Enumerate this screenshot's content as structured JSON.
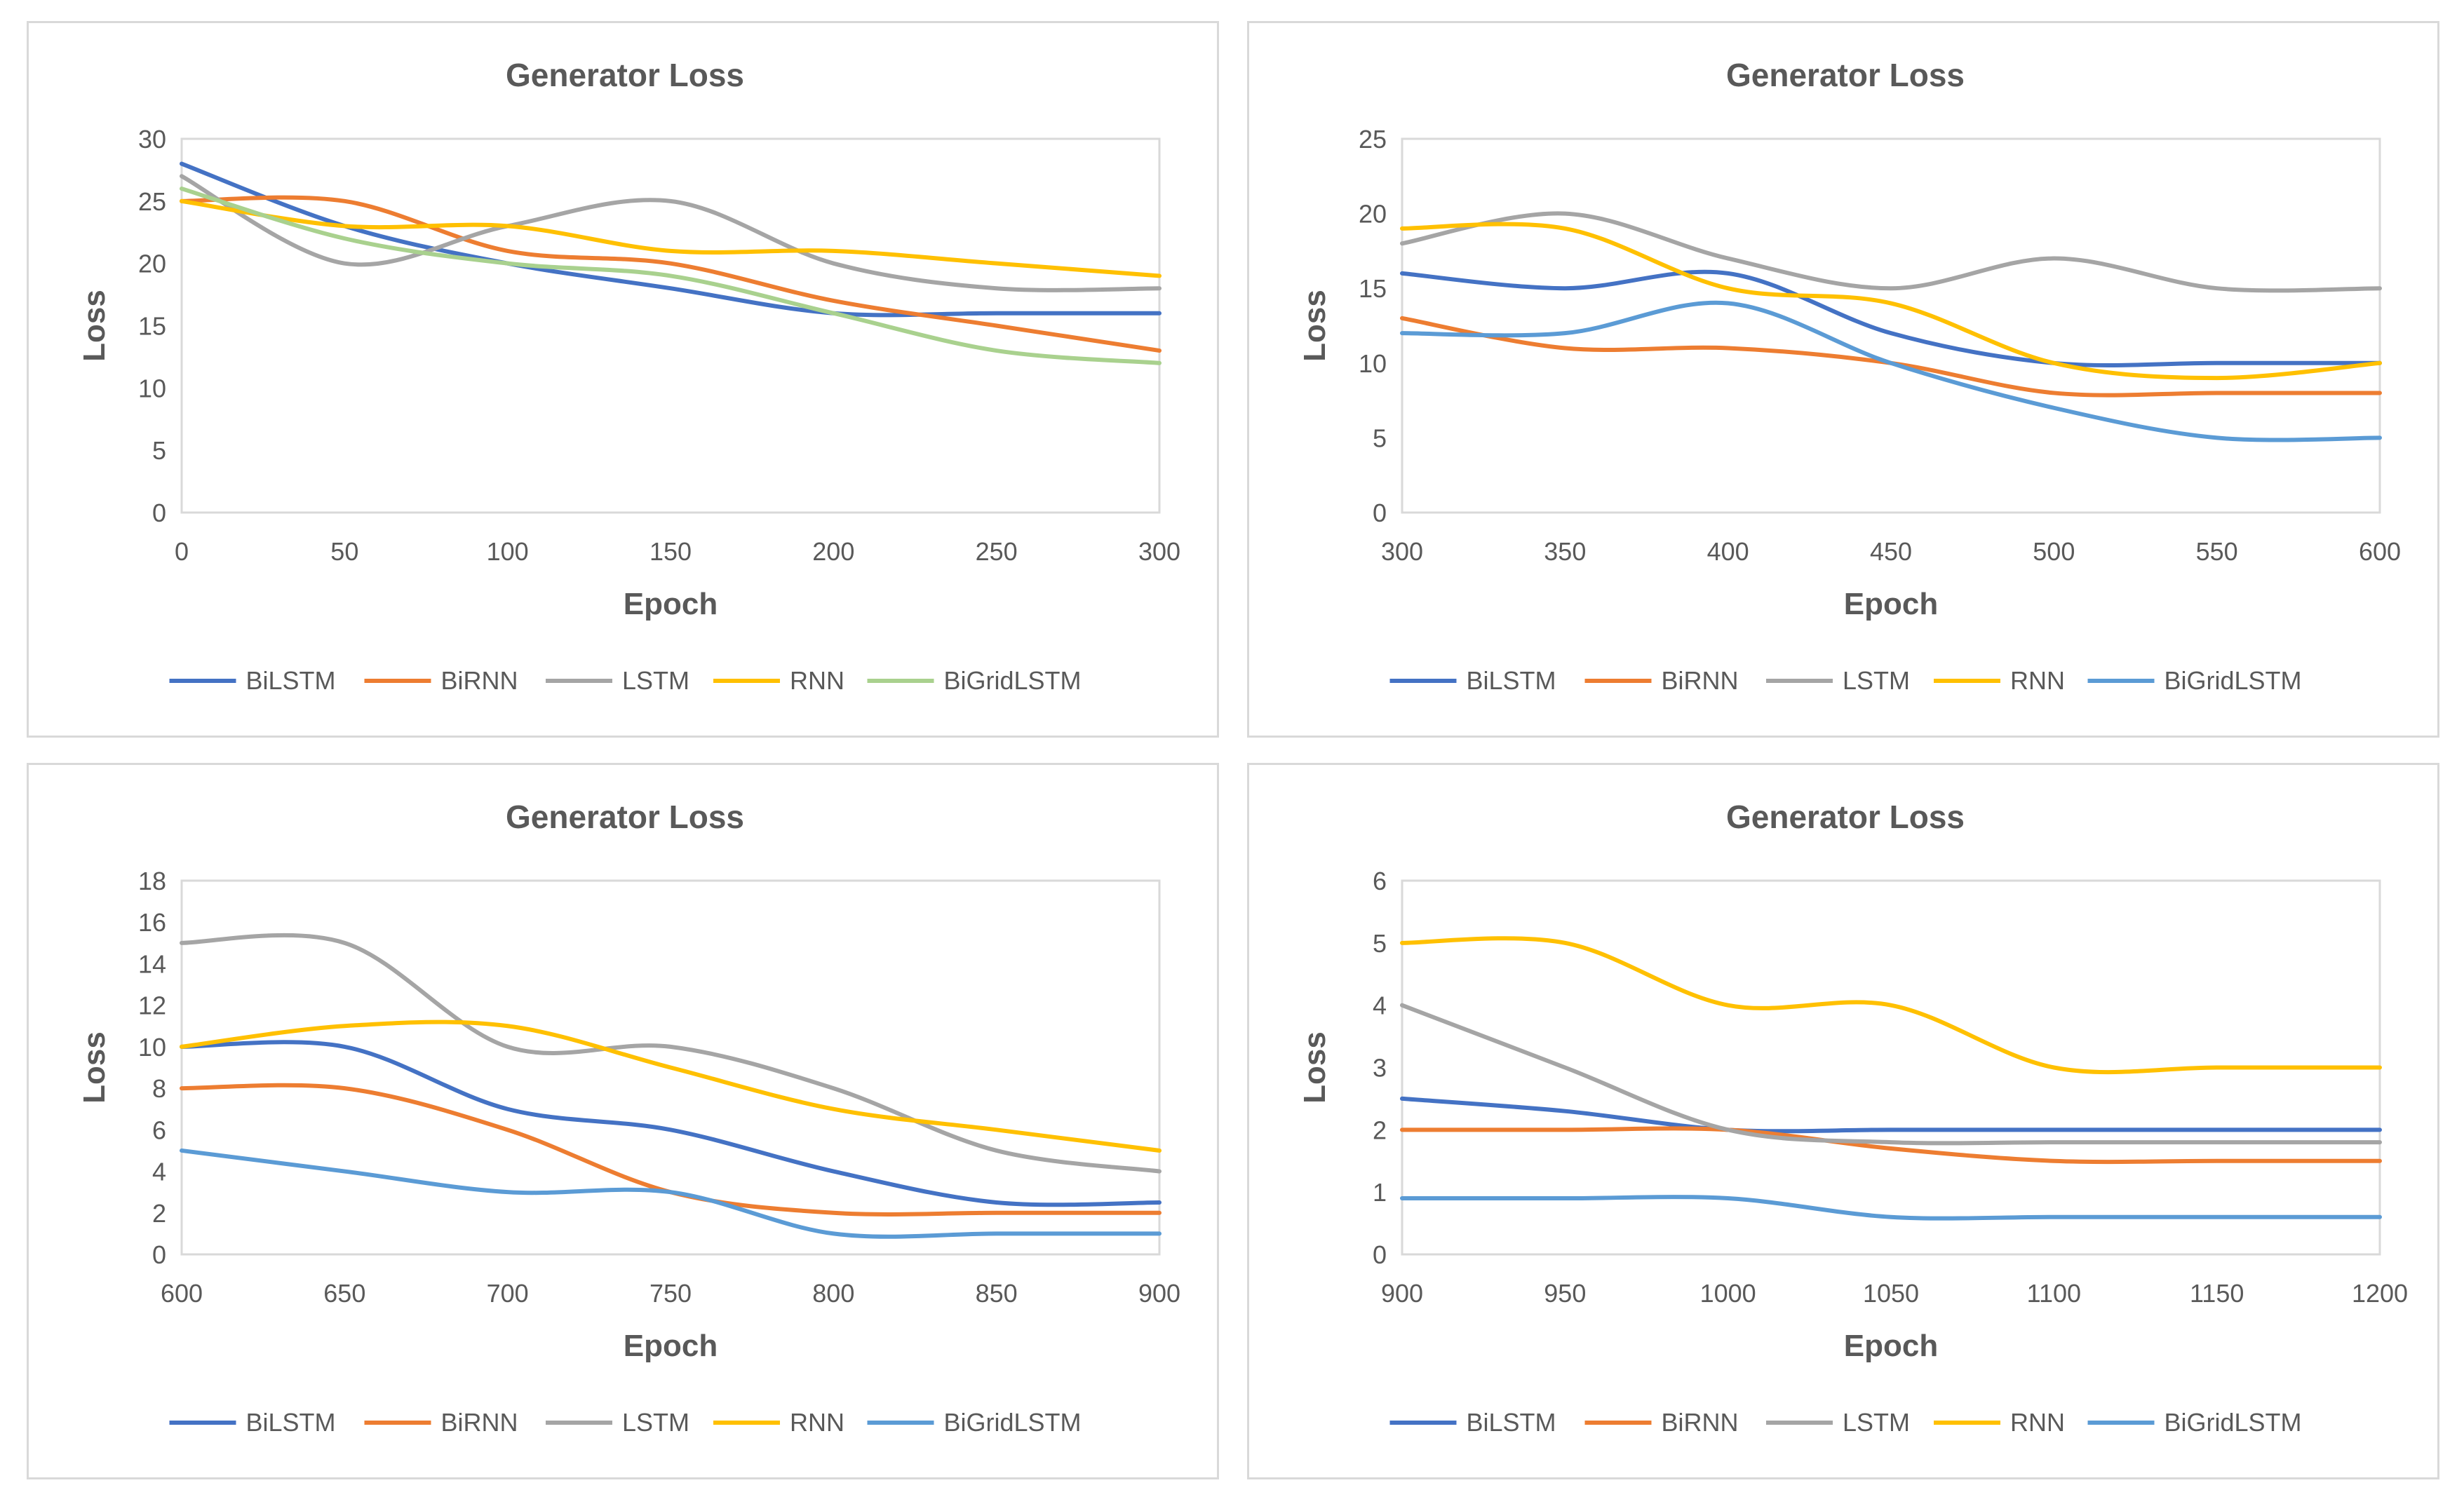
{
  "charts": [
    {
      "type": "line",
      "title": "Generator Loss",
      "xlabel": "Epoch",
      "ylabel": "Loss",
      "xlim": [
        0,
        300
      ],
      "ylim": [
        0,
        30
      ],
      "x_ticks": [
        0,
        50,
        100,
        150,
        200,
        250,
        300
      ],
      "y_ticks": [
        0,
        5,
        10,
        15,
        20,
        25,
        30
      ],
      "legend_position": "bottom",
      "series": [
        {
          "name": "BiLSTM",
          "color": "#4472c4",
          "x": [
            0,
            50,
            100,
            150,
            200,
            250,
            300
          ],
          "y": [
            28,
            23,
            20,
            18,
            16,
            16,
            16
          ]
        },
        {
          "name": "BiRNN",
          "color": "#ed7d31",
          "x": [
            0,
            50,
            100,
            150,
            200,
            250,
            300
          ],
          "y": [
            25,
            25,
            21,
            20,
            17,
            15,
            13
          ]
        },
        {
          "name": "LSTM",
          "color": "#a5a5a5",
          "x": [
            0,
            50,
            100,
            150,
            200,
            250,
            300
          ],
          "y": [
            27,
            20,
            23,
            25,
            20,
            18,
            18
          ]
        },
        {
          "name": "RNN",
          "color": "#ffc000",
          "x": [
            0,
            50,
            100,
            150,
            200,
            250,
            300
          ],
          "y": [
            25,
            23,
            23,
            21,
            21,
            20,
            19
          ]
        },
        {
          "name": "BiGridLSTM",
          "color": "#a9d18e",
          "x": [
            0,
            50,
            100,
            150,
            200,
            250,
            300
          ],
          "y": [
            26,
            22,
            20,
            19,
            16,
            13,
            12
          ]
        }
      ]
    },
    {
      "type": "line",
      "title": "Generator Loss",
      "xlabel": "Epoch",
      "ylabel": "Loss",
      "xlim": [
        300,
        600
      ],
      "ylim": [
        0,
        25
      ],
      "x_ticks": [
        300,
        350,
        400,
        450,
        500,
        550,
        600
      ],
      "y_ticks": [
        0,
        5,
        10,
        15,
        20,
        25
      ],
      "legend_position": "bottom",
      "series": [
        {
          "name": "BiLSTM",
          "color": "#4472c4",
          "x": [
            300,
            350,
            400,
            450,
            500,
            550,
            600
          ],
          "y": [
            16,
            15,
            16,
            12,
            10,
            10,
            10
          ]
        },
        {
          "name": "BiRNN",
          "color": "#ed7d31",
          "x": [
            300,
            350,
            400,
            450,
            500,
            550,
            600
          ],
          "y": [
            13,
            11,
            11,
            10,
            8,
            8,
            8
          ]
        },
        {
          "name": "LSTM",
          "color": "#a5a5a5",
          "x": [
            300,
            350,
            400,
            450,
            500,
            550,
            600
          ],
          "y": [
            18,
            20,
            17,
            15,
            17,
            15,
            15
          ]
        },
        {
          "name": "RNN",
          "color": "#ffc000",
          "x": [
            300,
            350,
            400,
            450,
            500,
            550,
            600
          ],
          "y": [
            19,
            19,
            15,
            14,
            10,
            9,
            10
          ]
        },
        {
          "name": "BiGridLSTM",
          "color": "#5b9bd5",
          "x": [
            300,
            350,
            400,
            450,
            500,
            550,
            600
          ],
          "y": [
            12,
            12,
            14,
            10,
            7,
            5,
            5
          ]
        }
      ]
    },
    {
      "type": "line",
      "title": "Generator Loss",
      "xlabel": "Epoch",
      "ylabel": "Loss",
      "xlim": [
        600,
        900
      ],
      "ylim": [
        0,
        18
      ],
      "x_ticks": [
        600,
        650,
        700,
        750,
        800,
        850,
        900
      ],
      "y_ticks": [
        0,
        2,
        4,
        6,
        8,
        10,
        12,
        14,
        16,
        18
      ],
      "legend_position": "bottom",
      "series": [
        {
          "name": "BiLSTM",
          "color": "#4472c4",
          "x": [
            600,
            650,
            700,
            750,
            800,
            850,
            900
          ],
          "y": [
            10,
            10,
            7,
            6,
            4,
            2.5,
            2.5
          ]
        },
        {
          "name": "BiRNN",
          "color": "#ed7d31",
          "x": [
            600,
            650,
            700,
            750,
            800,
            850,
            900
          ],
          "y": [
            8,
            8,
            6,
            3,
            2,
            2,
            2
          ]
        },
        {
          "name": "LSTM",
          "color": "#a5a5a5",
          "x": [
            600,
            650,
            700,
            750,
            800,
            850,
            900
          ],
          "y": [
            15,
            15,
            10,
            10,
            8,
            5,
            4
          ]
        },
        {
          "name": "RNN",
          "color": "#ffc000",
          "x": [
            600,
            650,
            700,
            750,
            800,
            850,
            900
          ],
          "y": [
            10,
            11,
            11,
            9,
            7,
            6,
            5
          ]
        },
        {
          "name": "BiGridLSTM",
          "color": "#5b9bd5",
          "x": [
            600,
            650,
            700,
            750,
            800,
            850,
            900
          ],
          "y": [
            5,
            4,
            3,
            3,
            1,
            1,
            1
          ]
        }
      ]
    },
    {
      "type": "line",
      "title": "Generator Loss",
      "xlabel": "Epoch",
      "ylabel": "Loss",
      "xlim": [
        900,
        1200
      ],
      "ylim": [
        0,
        6
      ],
      "x_ticks": [
        900,
        950,
        1000,
        1050,
        1100,
        1150,
        1200
      ],
      "y_ticks": [
        0,
        1,
        2,
        3,
        4,
        5,
        6
      ],
      "legend_position": "bottom",
      "series": [
        {
          "name": "BiLSTM",
          "color": "#4472c4",
          "x": [
            900,
            950,
            1000,
            1050,
            1100,
            1150,
            1200
          ],
          "y": [
            2.5,
            2.3,
            2,
            2,
            2,
            2,
            2
          ]
        },
        {
          "name": "BiRNN",
          "color": "#ed7d31",
          "x": [
            900,
            950,
            1000,
            1050,
            1100,
            1150,
            1200
          ],
          "y": [
            2,
            2,
            2,
            1.7,
            1.5,
            1.5,
            1.5
          ]
        },
        {
          "name": "LSTM",
          "color": "#a5a5a5",
          "x": [
            900,
            950,
            1000,
            1050,
            1100,
            1150,
            1200
          ],
          "y": [
            4,
            3,
            2,
            1.8,
            1.8,
            1.8,
            1.8
          ]
        },
        {
          "name": "RNN",
          "color": "#ffc000",
          "x": [
            900,
            950,
            1000,
            1050,
            1100,
            1150,
            1200
          ],
          "y": [
            5,
            5,
            4,
            4,
            3,
            3,
            3
          ]
        },
        {
          "name": "BiGridLSTM",
          "color": "#5b9bd5",
          "x": [
            900,
            950,
            1000,
            1050,
            1100,
            1150,
            1200
          ],
          "y": [
            0.9,
            0.9,
            0.9,
            0.6,
            0.6,
            0.6,
            0.6
          ]
        }
      ]
    }
  ]
}
